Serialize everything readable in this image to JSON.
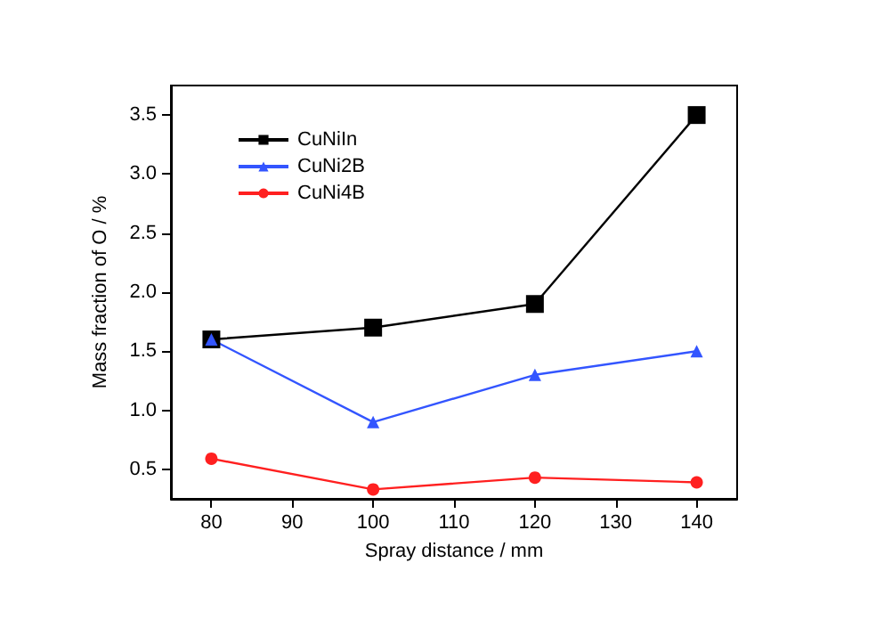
{
  "chart_data": {
    "type": "line",
    "xlabel": "Spray distance / mm",
    "ylabel": "Mass fraction of O / %",
    "x": [
      80,
      100,
      120,
      140
    ],
    "series": [
      {
        "name": "CuNiIn",
        "color": "#000000",
        "marker": "square",
        "values": [
          1.6,
          1.7,
          1.9,
          3.5
        ]
      },
      {
        "name": "CuNi2B",
        "color": "#3355ff",
        "marker": "triangle",
        "values": [
          1.6,
          0.9,
          1.3,
          1.5
        ]
      },
      {
        "name": "CuNi4B",
        "color": "#ff2020",
        "marker": "circle",
        "values": [
          0.59,
          0.33,
          0.43,
          0.39
        ]
      }
    ],
    "xlim": [
      75,
      145
    ],
    "xticks": [
      80,
      90,
      100,
      110,
      120,
      130,
      140
    ],
    "ylim": [
      0.25,
      3.75
    ],
    "yticks": [
      0.5,
      {
        "value": 1,
        "label": "1.0"
      },
      1.5,
      {
        "value": 2,
        "label": "2.0"
      },
      2.5,
      {
        "value": 3,
        "label": "3.0"
      },
      3.5
    ],
    "grid": false,
    "legend": "top left",
    "line_style": "solid"
  }
}
